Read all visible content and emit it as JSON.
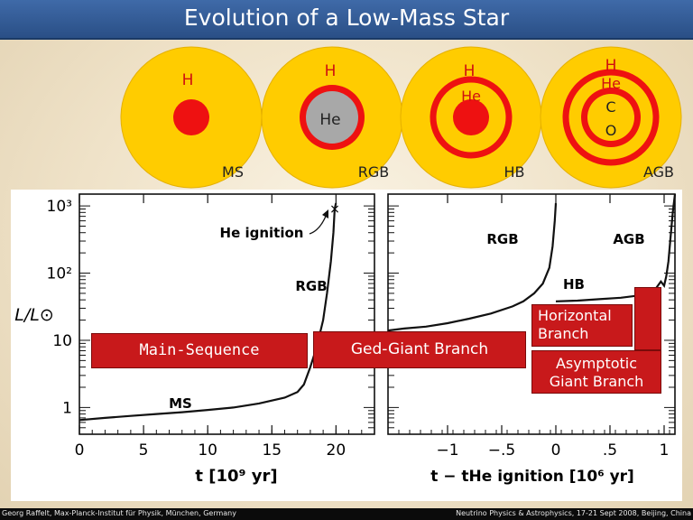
{
  "slide": {
    "title": "Evolution of a Low-Mass Star",
    "footer_left": "Georg Raffelt, Max-Planck-Institut für Physik, München, Germany",
    "footer_right": "Neutrino Physics & Astrophysics, 17-21 Sept 2008, Beijing, China"
  },
  "stars": [
    {
      "stage": "MS",
      "labels": [
        "H"
      ]
    },
    {
      "stage": "RGB",
      "labels": [
        "H",
        "He"
      ]
    },
    {
      "stage": "HB",
      "labels": [
        "H",
        "He"
      ]
    },
    {
      "stage": "AGB",
      "labels": [
        "H",
        "He",
        "C",
        "O"
      ]
    }
  ],
  "colors": {
    "star_outer": "#ffcc00",
    "shell": "#ee1111",
    "inert_core": "#a8a8a8",
    "callout": "#c8191b"
  },
  "callouts": {
    "main_sequence": "Main-Sequence",
    "red_giant": "Ged-Giant Branch",
    "horizontal": [
      "Horizontal",
      "Branch"
    ],
    "asymptotic": [
      "Asymptotic",
      "Giant Branch"
    ]
  },
  "chart_data": [
    {
      "type": "line",
      "xlabel": "t [10⁹ yr]",
      "ylabel": "L/L⊙",
      "xlim": [
        0,
        23
      ],
      "ylim": [
        0.4,
        1500
      ],
      "yscale": "log",
      "xticks": [
        "0",
        "5",
        "10",
        "15",
        "20"
      ],
      "yticks": [
        "1",
        "10",
        "10²",
        "10³"
      ],
      "x": [
        0,
        2,
        4,
        6,
        8,
        10,
        12,
        14,
        16,
        17,
        17.5,
        18,
        18.5,
        19,
        19.3,
        19.6,
        19.8,
        19.9,
        20
      ],
      "y": [
        0.65,
        0.7,
        0.75,
        0.8,
        0.85,
        0.92,
        1.0,
        1.15,
        1.4,
        1.7,
        2.2,
        4,
        8,
        20,
        50,
        150,
        400,
        900,
        1100
      ],
      "annotations": [
        "He ignition",
        "RGB",
        "MS"
      ]
    },
    {
      "type": "line",
      "xlabel": "t − tHe ignition [10⁶ yr]",
      "xlim": [
        -1.55,
        1.1
      ],
      "ylim": [
        0.4,
        1500
      ],
      "yscale": "log",
      "xticks": [
        "−1",
        "−.5",
        "0",
        ".5",
        "1"
      ],
      "x": [
        -1.55,
        -1.4,
        -1.2,
        -1.0,
        -0.8,
        -0.6,
        -0.4,
        -0.3,
        -0.2,
        -0.12,
        -0.06,
        -0.03,
        -0.01,
        0
      ],
      "y": [
        14,
        15,
        16,
        18,
        21,
        25,
        32,
        38,
        50,
        70,
        120,
        250,
        600,
        1100
      ],
      "x2": [
        0,
        0.2,
        0.4,
        0.6,
        0.75,
        0.85,
        0.92,
        0.97,
        1.0,
        1.02,
        1.04,
        1.06,
        1.08,
        1.1
      ],
      "y2": [
        38,
        39,
        41,
        43,
        46,
        50,
        58,
        75,
        65,
        90,
        150,
        350,
        800,
        1500
      ],
      "annotations": [
        "RGB",
        "AGB",
        "HB"
      ]
    }
  ]
}
